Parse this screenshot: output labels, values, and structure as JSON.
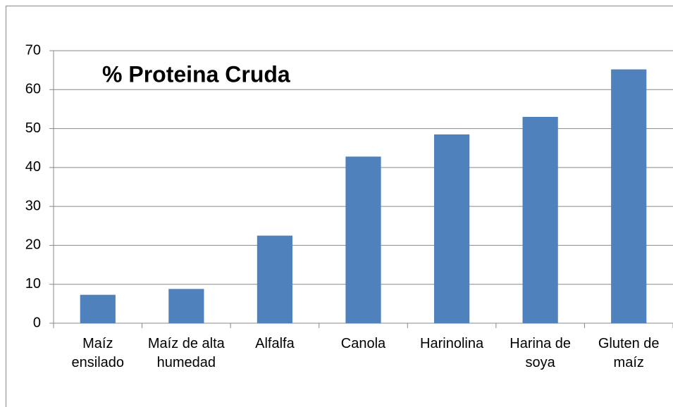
{
  "chart_data": {
    "type": "bar",
    "title": "% Proteina Cruda",
    "categories": [
      "Maíz ensilado",
      "Maíz de alta humedad",
      "Alfalfa",
      "Canola",
      "Harinolina",
      "Harina de soya",
      "Gluten de maíz"
    ],
    "values": [
      7.3,
      8.8,
      22.5,
      42.8,
      48.5,
      53,
      65.2
    ],
    "color": "#4f81bd",
    "ylim": [
      0,
      70
    ],
    "yticks": [
      0,
      10,
      20,
      30,
      40,
      50,
      60,
      70
    ],
    "grid": true
  }
}
